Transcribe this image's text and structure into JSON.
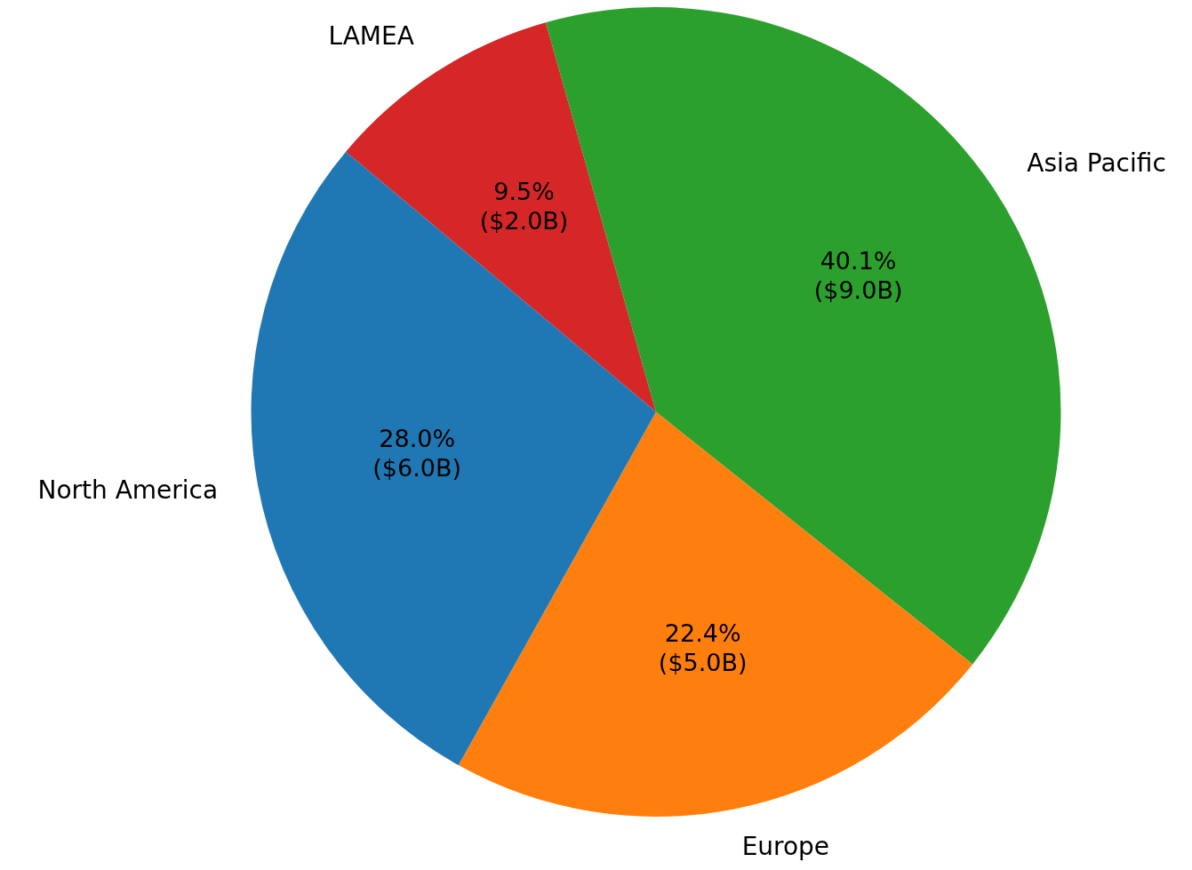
{
  "chart_data": {
    "type": "pie",
    "categories": [
      "LAMEA",
      "Asia Pacific",
      "Europe",
      "North America"
    ],
    "values": [
      9.5,
      40.1,
      22.4,
      28.0
    ],
    "colors": [
      "#d62728",
      "#2ca02c",
      "#ff7f0e",
      "#1f77b4"
    ],
    "value_labels": [
      "9.5%\n($2.0B)",
      "40.1%\n($9.0B)",
      "22.4%\n($5.0B)",
      "28.0%\n($6.0B)"
    ],
    "legend": false
  }
}
